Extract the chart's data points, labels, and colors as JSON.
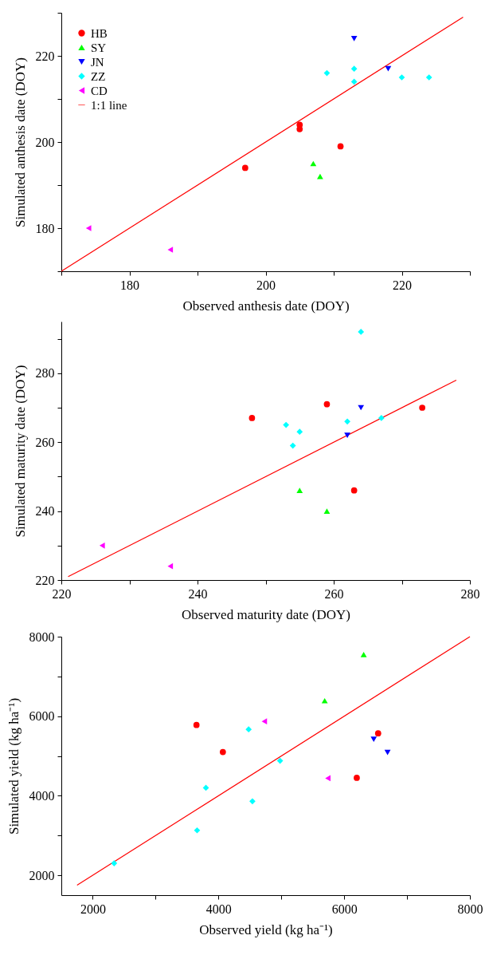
{
  "chart_data": [
    {
      "type": "scatter",
      "xlabel": "Observed anthesis date (DOY)",
      "ylabel": "Simulated anthesis date (DOY)",
      "xlim": [
        170,
        230
      ],
      "ylim": [
        170,
        230
      ],
      "xticks": [
        {
          "value": 170,
          "label": null
        },
        180,
        {
          "value": 190,
          "label": null
        },
        200,
        {
          "value": 210,
          "label": null
        },
        220,
        {
          "value": 230,
          "label": null
        }
      ],
      "yticks": [
        {
          "value": 170,
          "label": null
        },
        180,
        {
          "value": 190,
          "label": null
        },
        200,
        {
          "value": 210,
          "label": null
        },
        220,
        {
          "value": 230,
          "label": null
        }
      ],
      "grid": false,
      "legend": "top left",
      "series": [
        {
          "name": "HB",
          "color": "#ff0000",
          "marker": "circle",
          "x": [
            197,
            205,
            205,
            211
          ],
          "values": [
            194,
            204,
            203,
            199
          ]
        },
        {
          "name": "SY",
          "color": "#00ff00",
          "marker": "triangle",
          "x": [
            207,
            208
          ],
          "values": [
            195,
            192
          ]
        },
        {
          "name": "JN",
          "color": "#0000ff",
          "marker": "triangle-down",
          "x": [
            213,
            218
          ],
          "values": [
            224,
            217
          ]
        },
        {
          "name": "ZZ",
          "color": "#00ffff",
          "marker": "diamond",
          "x": [
            209,
            213,
            213,
            220,
            224
          ],
          "values": [
            216,
            217,
            214,
            215,
            215
          ]
        },
        {
          "name": "CD",
          "color": "#ff00ff",
          "marker": "triangle-left",
          "x": [
            174,
            186
          ],
          "values": [
            180,
            175
          ]
        },
        {
          "name": "1:1 line",
          "type": "line",
          "color": "#ff0000",
          "marker": "none",
          "line_style": "solid",
          "x": [
            170,
            229
          ],
          "values": [
            170,
            229
          ]
        }
      ]
    },
    {
      "type": "scatter",
      "xlabel": "Observed maturity date (DOY)",
      "ylabel": "Simulated maturity date (DOY)",
      "xlim": [
        220,
        280
      ],
      "ylim": [
        220,
        295
      ],
      "xticks": [
        220,
        {
          "value": 230,
          "label": null
        },
        240,
        {
          "value": 250,
          "label": null
        },
        260,
        {
          "value": 270,
          "label": null
        },
        280
      ],
      "yticks": [
        220,
        {
          "value": 230,
          "label": null
        },
        240,
        {
          "value": 250,
          "label": null
        },
        260,
        {
          "value": 270,
          "label": null
        },
        280,
        {
          "value": 290,
          "label": null
        }
      ],
      "grid": false,
      "legend": false,
      "series": [
        {
          "color": "#ff0000",
          "marker": "circle",
          "x": [
            248,
            259,
            273,
            263
          ],
          "values": [
            267,
            271,
            270,
            246
          ]
        },
        {
          "color": "#00ff00",
          "marker": "triangle",
          "x": [
            255,
            259
          ],
          "values": [
            246,
            240
          ]
        },
        {
          "color": "#0000ff",
          "marker": "triangle-down",
          "x": [
            264,
            262
          ],
          "values": [
            270,
            262
          ]
        },
        {
          "color": "#00ffff",
          "marker": "diamond",
          "x": [
            264,
            253,
            255,
            254,
            262,
            267
          ],
          "values": [
            292,
            265,
            263,
            259,
            266,
            267
          ]
        },
        {
          "color": "#ff00ff",
          "marker": "triangle-left",
          "x": [
            226,
            236
          ],
          "values": [
            230,
            224
          ]
        },
        {
          "type": "line",
          "color": "#ff0000",
          "marker": "none",
          "line_style": "solid",
          "x": [
            221,
            278
          ],
          "values": [
            221,
            278
          ]
        }
      ]
    },
    {
      "type": "scatter",
      "xlabel": "Observed yield (kg ha⁻¹)",
      "ylabel": "Simulated yield (kg ha⁻¹)",
      "xlim": [
        1500,
        8000
      ],
      "ylim": [
        1500,
        8000
      ],
      "xticks": [
        2000,
        {
          "value": 3000,
          "label": null
        },
        4000,
        {
          "value": 5000,
          "label": null
        },
        6000,
        {
          "value": 7000,
          "label": null
        },
        8000
      ],
      "yticks": [
        2000,
        {
          "value": 3000,
          "label": null
        },
        4000,
        {
          "value": 5000,
          "label": null
        },
        6000,
        {
          "value": 7000,
          "label": null
        },
        8000
      ],
      "grid": false,
      "legend": false,
      "series": [
        {
          "color": "#ff0000",
          "marker": "circle",
          "x": [
            3650,
            4070,
            6540,
            6200
          ],
          "values": [
            5780,
            5100,
            5570,
            4450
          ]
        },
        {
          "color": "#00ff00",
          "marker": "triangle",
          "x": [
            5690,
            6310
          ],
          "values": [
            6390,
            7550
          ]
        },
        {
          "color": "#0000ff",
          "marker": "triangle-down",
          "x": [
            6470,
            6690
          ],
          "values": [
            5420,
            5090
          ]
        },
        {
          "color": "#00ffff",
          "marker": "diamond",
          "x": [
            2340,
            3660,
            3800,
            4480,
            4540,
            4980
          ],
          "values": [
            2300,
            3130,
            4200,
            5670,
            3860,
            4880
          ]
        },
        {
          "color": "#ff00ff",
          "marker": "triangle-left",
          "x": [
            4730,
            5740
          ],
          "values": [
            5870,
            4440
          ]
        },
        {
          "type": "line",
          "color": "#ff0000",
          "marker": "none",
          "line_style": "solid",
          "x": [
            1750,
            8000
          ],
          "values": [
            1750,
            8000
          ]
        }
      ]
    }
  ]
}
